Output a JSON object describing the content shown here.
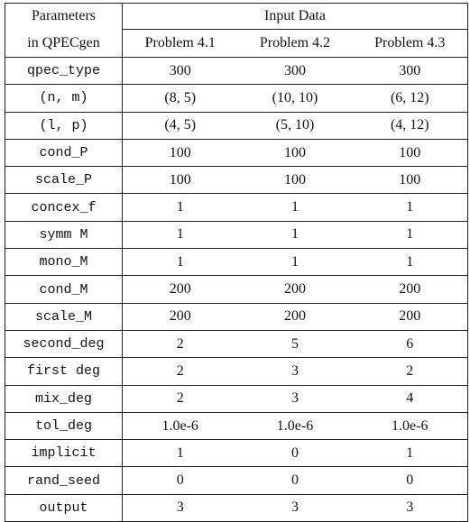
{
  "header": {
    "param_col": [
      "Parameters",
      "in QPECgen"
    ],
    "group": "Input Data",
    "problems": [
      "Problem 4.1",
      "Problem 4.2",
      "Problem 4.3"
    ]
  },
  "rows": [
    [
      "qpec_type",
      "300",
      "300",
      "300"
    ],
    [
      "(n, m)",
      "(8, 5)",
      "(10, 10)",
      "(6, 12)"
    ],
    [
      "(l, p)",
      "(4, 5)",
      "(5, 10)",
      "(4, 12)"
    ],
    [
      "cond_P",
      "100",
      "100",
      "100"
    ],
    [
      "scale_P",
      "100",
      "100",
      "100"
    ],
    [
      "concex_f",
      "1",
      "1",
      "1"
    ],
    [
      "symm M",
      "1",
      "1",
      "1"
    ],
    [
      "mono_M",
      "1",
      "1",
      "1"
    ],
    [
      "cond_M",
      "200",
      "200",
      "200"
    ],
    [
      "scale_M",
      "200",
      "200",
      "200"
    ],
    [
      "second_deg",
      "2",
      "5",
      "6"
    ],
    [
      "first deg",
      "2",
      "3",
      "2"
    ],
    [
      "mix_deg",
      "2",
      "3",
      "4"
    ],
    [
      "tol_deg",
      "1.0e-6",
      "1.0e-6",
      "1.0e-6"
    ],
    [
      "implicit",
      "1",
      "0",
      "1"
    ],
    [
      "rand_seed",
      "0",
      "0",
      "0"
    ],
    [
      "output",
      "3",
      "3",
      "3"
    ]
  ]
}
